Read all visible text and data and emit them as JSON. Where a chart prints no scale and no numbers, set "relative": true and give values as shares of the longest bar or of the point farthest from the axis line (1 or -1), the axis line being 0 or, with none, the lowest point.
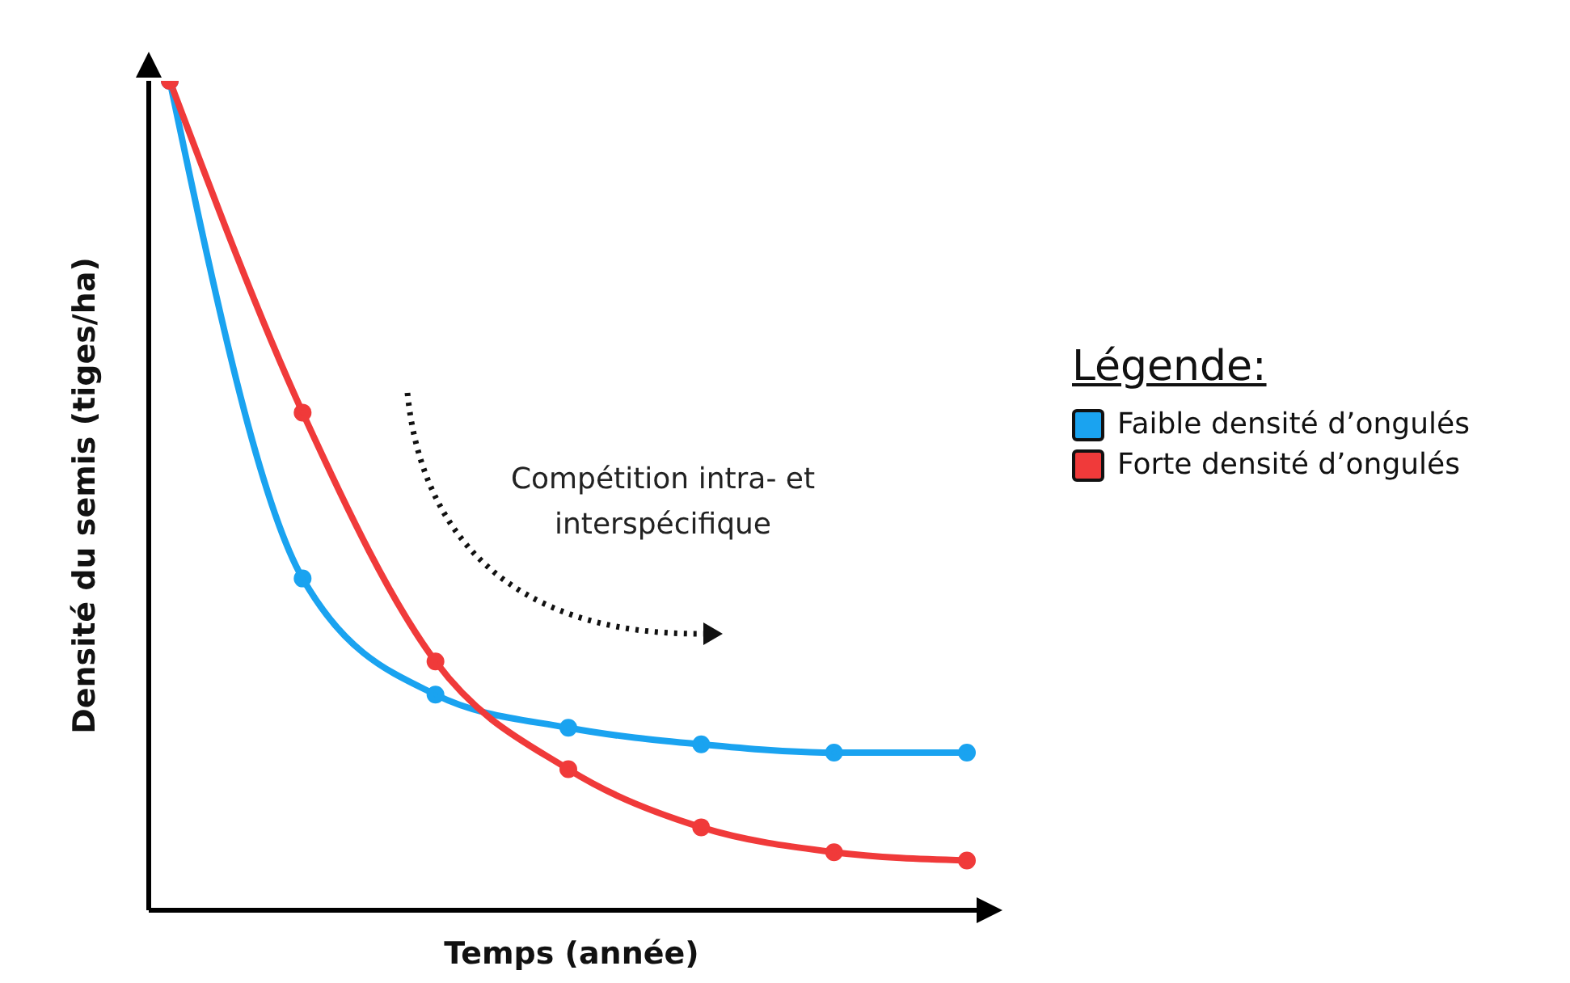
{
  "chart_data": {
    "type": "line",
    "relative": true,
    "xlabel": "Temps (année)",
    "ylabel": "Densité du semis (tiges/ha)",
    "legend_title": "Légende:",
    "legend": "right",
    "marker": "circle",
    "line_style": "solid",
    "categories": [
      null,
      null,
      null,
      null,
      null,
      null,
      null
    ],
    "series": [
      {
        "name": "Faible densité d’ongulés",
        "color": "#1aa3f0",
        "values": [
          1,
          0.4,
          0.26,
          0.22,
          0.2,
          0.19,
          0.19
        ]
      },
      {
        "name": "Forte densité d’ongulés",
        "color": "#f03a3a",
        "values": [
          1,
          0.6,
          0.3,
          0.17,
          0.1,
          0.07,
          0.06
        ]
      }
    ],
    "annotations": [
      "Compétition intra- et interspécifique"
    ]
  }
}
